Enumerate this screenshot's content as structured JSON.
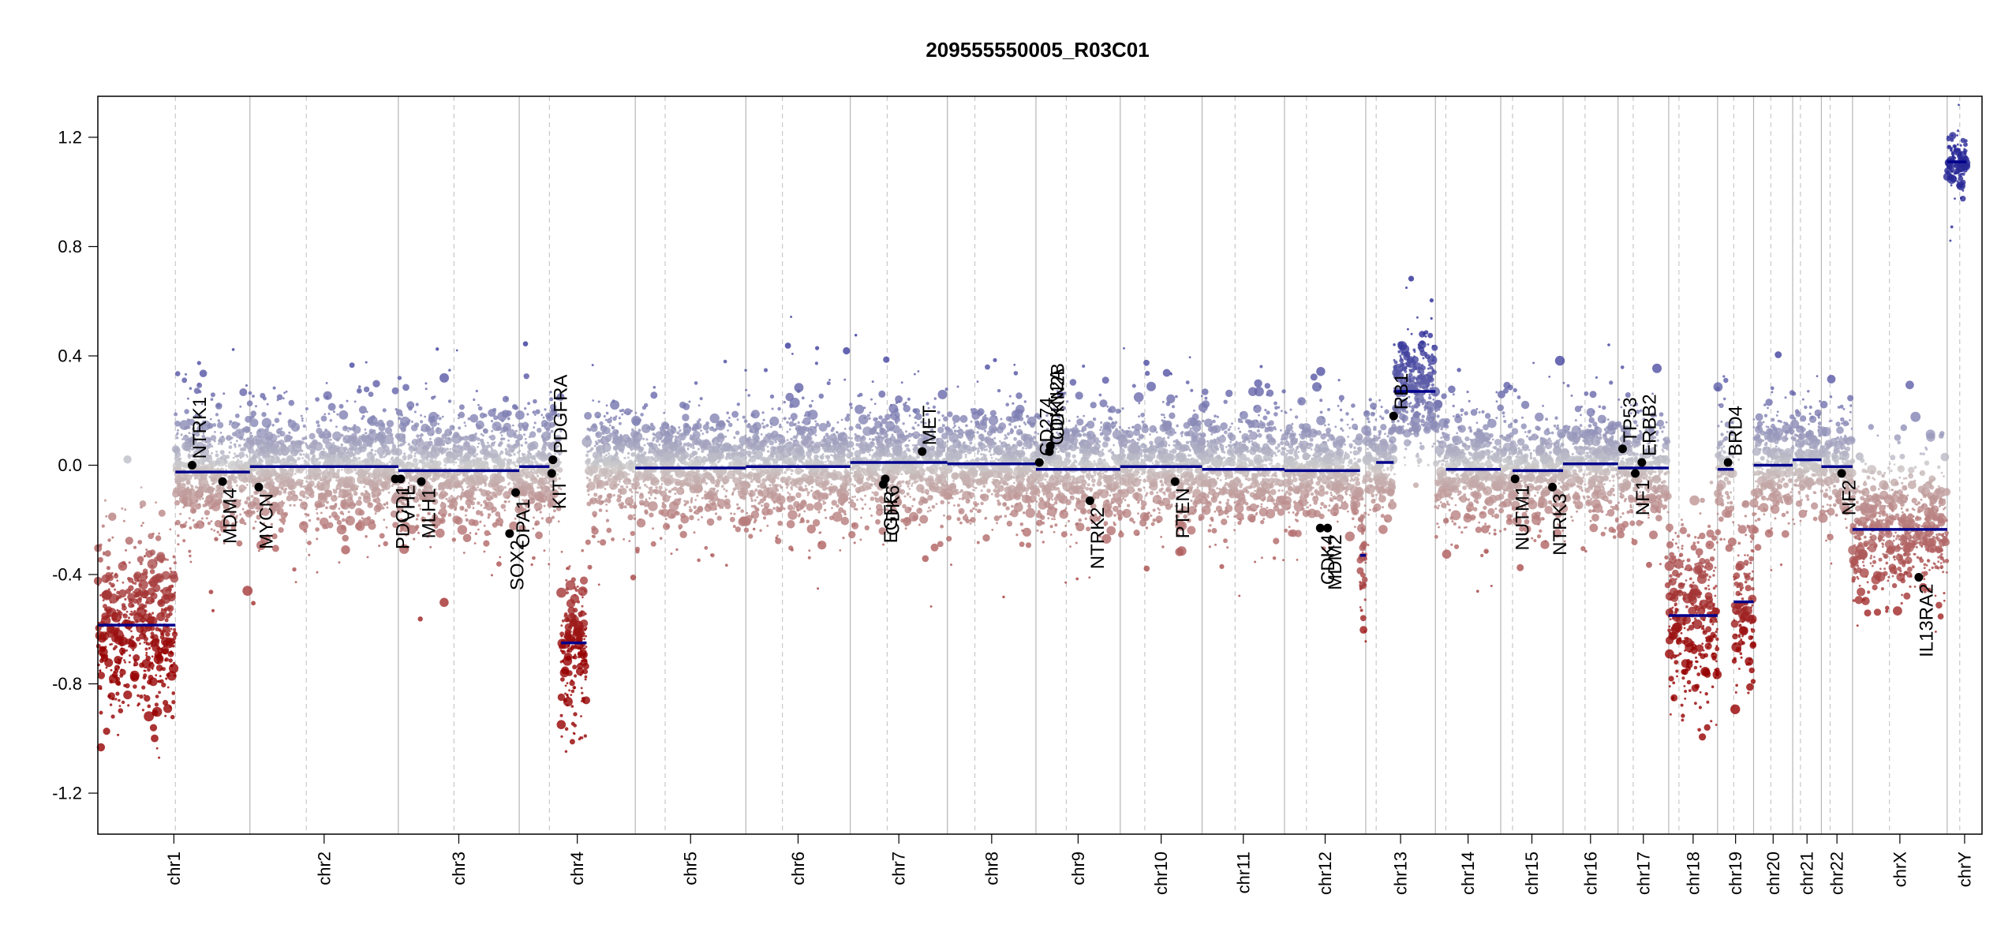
{
  "chart_data": {
    "type": "scatter",
    "title": "209555550005_R03C01",
    "xlabel": "",
    "ylabel": "",
    "ylim": [
      -1.35,
      1.35
    ],
    "yticks": [
      -1.2,
      -0.8,
      -0.4,
      0.0,
      0.4,
      0.8,
      1.2
    ],
    "ytick_labels": [
      "-1.2",
      "-0.8",
      "-0.4",
      "0.0",
      "0.4",
      "0.8",
      "1.2"
    ],
    "x_total": 3000,
    "chromosomes": [
      {
        "name": "chr1",
        "len": 249,
        "centro": 0.51,
        "seg": [
          [
            0,
            0.51,
            -0.585
          ],
          [
            0.51,
            1.0,
            -0.025
          ]
        ],
        "spread": 0.12
      },
      {
        "name": "chr2",
        "len": 243,
        "centro": 0.38,
        "seg": [
          [
            0,
            1.0,
            -0.005
          ]
        ],
        "spread": 0.1
      },
      {
        "name": "chr3",
        "len": 198,
        "centro": 0.46,
        "seg": [
          [
            0,
            1.0,
            -0.02
          ]
        ],
        "spread": 0.1
      },
      {
        "name": "chr4",
        "len": 190,
        "centro": 0.26,
        "seg": [
          [
            0,
            0.26,
            -0.005
          ],
          [
            0.36,
            0.58,
            -0.65
          ]
        ],
        "spread": 0.1
      },
      {
        "name": "chr5",
        "len": 181,
        "centro": 0.27,
        "seg": [
          [
            0,
            1.0,
            -0.01
          ]
        ],
        "spread": 0.1
      },
      {
        "name": "chr6",
        "len": 171,
        "centro": 0.35,
        "seg": [
          [
            0,
            1.0,
            -0.005
          ]
        ],
        "spread": 0.1
      },
      {
        "name": "chr7",
        "len": 159,
        "centro": 0.38,
        "seg": [
          [
            0,
            1.0,
            0.01
          ]
        ],
        "spread": 0.1
      },
      {
        "name": "chr8",
        "len": 145,
        "centro": 0.31,
        "seg": [
          [
            0,
            1.0,
            0.005
          ]
        ],
        "spread": 0.1
      },
      {
        "name": "chr9",
        "len": 138,
        "centro": 0.36,
        "seg": [
          [
            0,
            1.0,
            -0.015
          ]
        ],
        "spread": 0.1
      },
      {
        "name": "chr10",
        "len": 134,
        "centro": 0.3,
        "seg": [
          [
            0,
            1.0,
            -0.005
          ]
        ],
        "spread": 0.1
      },
      {
        "name": "chr11",
        "len": 135,
        "centro": 0.4,
        "seg": [
          [
            0,
            1.0,
            -0.015
          ]
        ],
        "spread": 0.1
      },
      {
        "name": "chr12",
        "len": 133,
        "centro": 0.27,
        "seg": [
          [
            0,
            0.93,
            -0.02
          ],
          [
            0.93,
            1.0,
            -0.33
          ]
        ],
        "spread": 0.1
      },
      {
        "name": "chr13",
        "len": 114,
        "centro": 0.15,
        "seg": [
          [
            0.15,
            0.4,
            0.01
          ],
          [
            0.4,
            1.0,
            0.27
          ]
        ],
        "spread": 0.1
      },
      {
        "name": "chr14",
        "len": 107,
        "centro": 0.16,
        "seg": [
          [
            0.16,
            1.0,
            -0.015
          ]
        ],
        "spread": 0.1
      },
      {
        "name": "chr15",
        "len": 102,
        "centro": 0.19,
        "seg": [
          [
            0.19,
            1.0,
            -0.02
          ]
        ],
        "spread": 0.1
      },
      {
        "name": "chr16",
        "len": 90,
        "centro": 0.4,
        "seg": [
          [
            0,
            1.0,
            0.005
          ]
        ],
        "spread": 0.1
      },
      {
        "name": "chr17",
        "len": 83,
        "centro": 0.3,
        "seg": [
          [
            0,
            1.0,
            -0.01
          ]
        ],
        "spread": 0.1
      },
      {
        "name": "chr18",
        "len": 80,
        "centro": 0.21,
        "seg": [
          [
            0,
            1.0,
            -0.55
          ]
        ],
        "spread": 0.12
      },
      {
        "name": "chr19",
        "len": 59,
        "centro": 0.45,
        "seg": [
          [
            0,
            0.45,
            -0.015
          ],
          [
            0.45,
            1.0,
            -0.5
          ]
        ],
        "spread": 0.12
      },
      {
        "name": "chr20",
        "len": 64,
        "centro": 0.44,
        "seg": [
          [
            0,
            1.0,
            0.0
          ]
        ],
        "spread": 0.1
      },
      {
        "name": "chr21",
        "len": 47,
        "centro": 0.27,
        "seg": [
          [
            0,
            1.0,
            0.02
          ]
        ],
        "spread": 0.1
      },
      {
        "name": "chr22",
        "len": 51,
        "centro": 0.28,
        "seg": [
          [
            0,
            1.0,
            -0.005
          ]
        ],
        "spread": 0.1
      },
      {
        "name": "chrX",
        "len": 155,
        "centro": 0.39,
        "seg": [
          [
            0,
            1.0,
            -0.235
          ]
        ],
        "spread": 0.12
      },
      {
        "name": "chrY",
        "len": 57,
        "centro": 0.36,
        "seg": [
          [
            0.0,
            0.55,
            1.11
          ]
        ],
        "spread": 0.05
      }
    ],
    "genes": [
      {
        "name": "NTRK1",
        "chr": "chr1",
        "pos": 0.62,
        "y": 0.0,
        "side": "up"
      },
      {
        "name": "MDM4",
        "chr": "chr1",
        "pos": 0.82,
        "y": -0.06,
        "side": "down"
      },
      {
        "name": "MYCN",
        "chr": "chr2",
        "pos": 0.06,
        "y": -0.08,
        "side": "down"
      },
      {
        "name": "VHL",
        "chr": "chr3",
        "pos": 0.02,
        "y": -0.05,
        "side": "down"
      },
      {
        "name": "PDCD1",
        "chr": "chr2",
        "pos": 0.98,
        "y": -0.05,
        "side": "down"
      },
      {
        "name": "MLH1",
        "chr": "chr3",
        "pos": 0.19,
        "y": -0.06,
        "side": "down"
      },
      {
        "name": "SOX2",
        "chr": "chr3",
        "pos": 0.92,
        "y": -0.25,
        "side": "down"
      },
      {
        "name": "OPA1",
        "chr": "chr3",
        "pos": 0.97,
        "y": -0.1,
        "side": "down"
      },
      {
        "name": "KIT",
        "chr": "chr4",
        "pos": 0.28,
        "y": -0.03,
        "side": "down"
      },
      {
        "name": "PDGFRA",
        "chr": "chr4",
        "pos": 0.29,
        "y": 0.02,
        "side": "up"
      },
      {
        "name": "EGFR",
        "chr": "chr7",
        "pos": 0.34,
        "y": -0.07,
        "side": "down"
      },
      {
        "name": "CDK6",
        "chr": "chr7",
        "pos": 0.36,
        "y": -0.05,
        "side": "down"
      },
      {
        "name": "MET",
        "chr": "chr7",
        "pos": 0.74,
        "y": 0.05,
        "side": "up"
      },
      {
        "name": "CD274",
        "chr": "chr9",
        "pos": 0.04,
        "y": 0.01,
        "side": "up"
      },
      {
        "name": "CDKN2A",
        "chr": "chr9",
        "pos": 0.16,
        "y": 0.05,
        "side": "up"
      },
      {
        "name": "CDKN2B",
        "chr": "chr9",
        "pos": 0.17,
        "y": 0.07,
        "side": "up"
      },
      {
        "name": "NTRK2",
        "chr": "chr9",
        "pos": 0.64,
        "y": -0.13,
        "side": "down"
      },
      {
        "name": "PTEN",
        "chr": "chr10",
        "pos": 0.67,
        "y": -0.06,
        "side": "down"
      },
      {
        "name": "CDK4",
        "chr": "chr12",
        "pos": 0.44,
        "y": -0.23,
        "side": "down"
      },
      {
        "name": "MDM2",
        "chr": "chr12",
        "pos": 0.53,
        "y": -0.23,
        "side": "down"
      },
      {
        "name": "RB1",
        "chr": "chr13",
        "pos": 0.4,
        "y": 0.18,
        "side": "up"
      },
      {
        "name": "NUTM1",
        "chr": "chr15",
        "pos": 0.23,
        "y": -0.05,
        "side": "down"
      },
      {
        "name": "NTRK3",
        "chr": "chr15",
        "pos": 0.83,
        "y": -0.08,
        "side": "down"
      },
      {
        "name": "TP53",
        "chr": "chr17",
        "pos": 0.09,
        "y": 0.06,
        "side": "up"
      },
      {
        "name": "NF1",
        "chr": "chr17",
        "pos": 0.34,
        "y": -0.03,
        "side": "down"
      },
      {
        "name": "ERBB2",
        "chr": "chr17",
        "pos": 0.47,
        "y": 0.01,
        "side": "up"
      },
      {
        "name": "BRD4",
        "chr": "chr19",
        "pos": 0.29,
        "y": 0.01,
        "side": "up"
      },
      {
        "name": "NF2",
        "chr": "chr22",
        "pos": 0.65,
        "y": -0.03,
        "side": "down"
      },
      {
        "name": "IL13RA2",
        "chr": "chrX",
        "pos": 0.7,
        "y": -0.41,
        "side": "down"
      }
    ]
  }
}
